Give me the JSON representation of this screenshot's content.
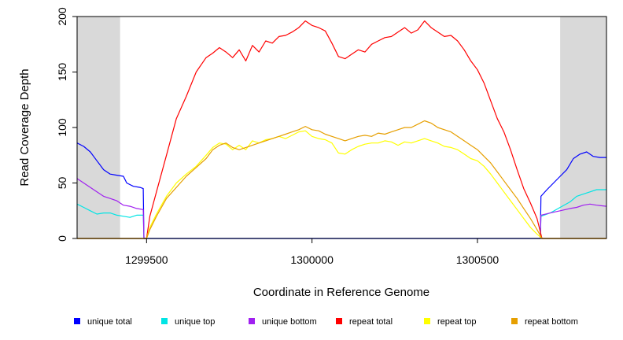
{
  "chart_data": {
    "type": "line",
    "title": "",
    "xlabel": "Coordinate in Reference Genome",
    "ylabel": "Read Coverage Depth",
    "xlim": [
      1299290,
      1300890
    ],
    "ylim": [
      0,
      200
    ],
    "x_ticks": [
      1299500,
      1300000,
      1300500
    ],
    "x_tick_labels": [
      "1299500",
      "1300000",
      "1300500"
    ],
    "y_ticks": [
      0,
      50,
      100,
      150,
      200
    ],
    "y_tick_labels": [
      "0",
      "50",
      "100",
      "150",
      "200"
    ],
    "shaded_regions": [
      [
        1299290,
        1299420
      ],
      [
        1300750,
        1300890
      ]
    ],
    "legend_position": "bottom",
    "series": [
      {
        "name": "unique total",
        "color": "#0000ff",
        "points": [
          [
            1299290,
            86
          ],
          [
            1299310,
            83
          ],
          [
            1299330,
            78
          ],
          [
            1299350,
            70
          ],
          [
            1299370,
            62
          ],
          [
            1299390,
            58
          ],
          [
            1299410,
            57
          ],
          [
            1299430,
            56
          ],
          [
            1299440,
            50
          ],
          [
            1299460,
            47
          ],
          [
            1299480,
            46
          ],
          [
            1299490,
            45
          ],
          [
            1299492,
            0
          ],
          [
            1300690,
            0
          ],
          [
            1300692,
            38
          ],
          [
            1300710,
            44
          ],
          [
            1300730,
            50
          ],
          [
            1300750,
            56
          ],
          [
            1300770,
            62
          ],
          [
            1300790,
            72
          ],
          [
            1300810,
            76
          ],
          [
            1300830,
            78
          ],
          [
            1300850,
            74
          ],
          [
            1300870,
            73
          ],
          [
            1300890,
            73
          ]
        ]
      },
      {
        "name": "unique top",
        "color": "#00e5e5",
        "points": [
          [
            1299290,
            31
          ],
          [
            1299310,
            28
          ],
          [
            1299330,
            25
          ],
          [
            1299350,
            22
          ],
          [
            1299370,
            23
          ],
          [
            1299390,
            23
          ],
          [
            1299410,
            21
          ],
          [
            1299430,
            20
          ],
          [
            1299450,
            19
          ],
          [
            1299470,
            21
          ],
          [
            1299490,
            21
          ],
          [
            1299492,
            0
          ],
          [
            1300690,
            0
          ],
          [
            1300692,
            20
          ],
          [
            1300720,
            23
          ],
          [
            1300750,
            28
          ],
          [
            1300780,
            33
          ],
          [
            1300800,
            38
          ],
          [
            1300820,
            40
          ],
          [
            1300840,
            42
          ],
          [
            1300860,
            44
          ],
          [
            1300890,
            44
          ]
        ]
      },
      {
        "name": "unique bottom",
        "color": "#a020f0",
        "points": [
          [
            1299290,
            54
          ],
          [
            1299310,
            50
          ],
          [
            1299330,
            46
          ],
          [
            1299350,
            42
          ],
          [
            1299370,
            38
          ],
          [
            1299390,
            36
          ],
          [
            1299410,
            34
          ],
          [
            1299430,
            30
          ],
          [
            1299450,
            29
          ],
          [
            1299470,
            27
          ],
          [
            1299490,
            26
          ],
          [
            1299492,
            0
          ],
          [
            1300690,
            0
          ],
          [
            1300692,
            21
          ],
          [
            1300720,
            23
          ],
          [
            1300750,
            25
          ],
          [
            1300780,
            27
          ],
          [
            1300800,
            28
          ],
          [
            1300820,
            30
          ],
          [
            1300840,
            31
          ],
          [
            1300860,
            30
          ],
          [
            1300890,
            29
          ]
        ]
      },
      {
        "name": "repeat total",
        "color": "#ff0000",
        "points": [
          [
            1299290,
            0
          ],
          [
            1299500,
            0
          ],
          [
            1299510,
            20
          ],
          [
            1299530,
            42
          ],
          [
            1299560,
            75
          ],
          [
            1299590,
            108
          ],
          [
            1299620,
            128
          ],
          [
            1299650,
            150
          ],
          [
            1299680,
            163
          ],
          [
            1299700,
            167
          ],
          [
            1299720,
            172
          ],
          [
            1299740,
            168
          ],
          [
            1299760,
            163
          ],
          [
            1299780,
            170
          ],
          [
            1299800,
            160
          ],
          [
            1299820,
            174
          ],
          [
            1299840,
            168
          ],
          [
            1299860,
            178
          ],
          [
            1299880,
            176
          ],
          [
            1299900,
            182
          ],
          [
            1299920,
            183
          ],
          [
            1299940,
            186
          ],
          [
            1299960,
            190
          ],
          [
            1299980,
            196
          ],
          [
            1300000,
            192
          ],
          [
            1300020,
            190
          ],
          [
            1300040,
            187
          ],
          [
            1300060,
            176
          ],
          [
            1300080,
            164
          ],
          [
            1300100,
            162
          ],
          [
            1300120,
            166
          ],
          [
            1300140,
            170
          ],
          [
            1300160,
            168
          ],
          [
            1300180,
            175
          ],
          [
            1300200,
            178
          ],
          [
            1300220,
            181
          ],
          [
            1300240,
            182
          ],
          [
            1300260,
            186
          ],
          [
            1300280,
            190
          ],
          [
            1300300,
            185
          ],
          [
            1300320,
            188
          ],
          [
            1300340,
            196
          ],
          [
            1300360,
            190
          ],
          [
            1300380,
            186
          ],
          [
            1300400,
            182
          ],
          [
            1300420,
            183
          ],
          [
            1300440,
            178
          ],
          [
            1300460,
            170
          ],
          [
            1300480,
            160
          ],
          [
            1300500,
            152
          ],
          [
            1300520,
            140
          ],
          [
            1300540,
            124
          ],
          [
            1300560,
            108
          ],
          [
            1300580,
            96
          ],
          [
            1300600,
            80
          ],
          [
            1300620,
            62
          ],
          [
            1300640,
            45
          ],
          [
            1300660,
            32
          ],
          [
            1300680,
            18
          ],
          [
            1300695,
            0
          ],
          [
            1300890,
            0
          ]
        ]
      },
      {
        "name": "repeat top",
        "color": "#ffff00",
        "points": [
          [
            1299290,
            0
          ],
          [
            1299500,
            0
          ],
          [
            1299510,
            10
          ],
          [
            1299530,
            22
          ],
          [
            1299560,
            38
          ],
          [
            1299590,
            50
          ],
          [
            1299620,
            58
          ],
          [
            1299650,
            65
          ],
          [
            1299680,
            75
          ],
          [
            1299700,
            82
          ],
          [
            1299720,
            86
          ],
          [
            1299740,
            85
          ],
          [
            1299760,
            80
          ],
          [
            1299780,
            84
          ],
          [
            1299800,
            80
          ],
          [
            1299820,
            88
          ],
          [
            1299840,
            86
          ],
          [
            1299860,
            89
          ],
          [
            1299880,
            90
          ],
          [
            1299900,
            92
          ],
          [
            1299920,
            90
          ],
          [
            1299940,
            93
          ],
          [
            1299960,
            96
          ],
          [
            1299980,
            97
          ],
          [
            1300000,
            92
          ],
          [
            1300020,
            90
          ],
          [
            1300040,
            89
          ],
          [
            1300060,
            86
          ],
          [
            1300080,
            77
          ],
          [
            1300100,
            76
          ],
          [
            1300120,
            80
          ],
          [
            1300140,
            83
          ],
          [
            1300160,
            85
          ],
          [
            1300180,
            86
          ],
          [
            1300200,
            86
          ],
          [
            1300220,
            88
          ],
          [
            1300240,
            87
          ],
          [
            1300260,
            84
          ],
          [
            1300280,
            87
          ],
          [
            1300300,
            86
          ],
          [
            1300320,
            88
          ],
          [
            1300340,
            90
          ],
          [
            1300360,
            88
          ],
          [
            1300380,
            86
          ],
          [
            1300400,
            83
          ],
          [
            1300420,
            82
          ],
          [
            1300440,
            80
          ],
          [
            1300460,
            76
          ],
          [
            1300480,
            72
          ],
          [
            1300500,
            70
          ],
          [
            1300520,
            65
          ],
          [
            1300540,
            58
          ],
          [
            1300560,
            50
          ],
          [
            1300580,
            42
          ],
          [
            1300600,
            34
          ],
          [
            1300620,
            26
          ],
          [
            1300640,
            18
          ],
          [
            1300660,
            10
          ],
          [
            1300680,
            4
          ],
          [
            1300695,
            0
          ],
          [
            1300890,
            0
          ]
        ]
      },
      {
        "name": "repeat bottom",
        "color": "#e69f00",
        "points": [
          [
            1299290,
            0
          ],
          [
            1299500,
            0
          ],
          [
            1299510,
            8
          ],
          [
            1299530,
            20
          ],
          [
            1299560,
            36
          ],
          [
            1299590,
            46
          ],
          [
            1299620,
            56
          ],
          [
            1299650,
            64
          ],
          [
            1299680,
            72
          ],
          [
            1299700,
            80
          ],
          [
            1299720,
            84
          ],
          [
            1299740,
            86
          ],
          [
            1299760,
            82
          ],
          [
            1299780,
            80
          ],
          [
            1299800,
            82
          ],
          [
            1299820,
            84
          ],
          [
            1299840,
            86
          ],
          [
            1299860,
            88
          ],
          [
            1299880,
            90
          ],
          [
            1299900,
            92
          ],
          [
            1299920,
            94
          ],
          [
            1299940,
            96
          ],
          [
            1299960,
            98
          ],
          [
            1299980,
            101
          ],
          [
            1300000,
            98
          ],
          [
            1300020,
            97
          ],
          [
            1300040,
            94
          ],
          [
            1300060,
            92
          ],
          [
            1300080,
            90
          ],
          [
            1300100,
            88
          ],
          [
            1300120,
            90
          ],
          [
            1300140,
            92
          ],
          [
            1300160,
            93
          ],
          [
            1300180,
            92
          ],
          [
            1300200,
            95
          ],
          [
            1300220,
            94
          ],
          [
            1300240,
            96
          ],
          [
            1300260,
            98
          ],
          [
            1300280,
            100
          ],
          [
            1300300,
            100
          ],
          [
            1300320,
            103
          ],
          [
            1300340,
            106
          ],
          [
            1300360,
            104
          ],
          [
            1300380,
            100
          ],
          [
            1300400,
            98
          ],
          [
            1300420,
            96
          ],
          [
            1300440,
            92
          ],
          [
            1300460,
            88
          ],
          [
            1300480,
            84
          ],
          [
            1300500,
            80
          ],
          [
            1300520,
            74
          ],
          [
            1300540,
            68
          ],
          [
            1300560,
            60
          ],
          [
            1300580,
            52
          ],
          [
            1300600,
            44
          ],
          [
            1300620,
            36
          ],
          [
            1300640,
            27
          ],
          [
            1300660,
            18
          ],
          [
            1300680,
            8
          ],
          [
            1300695,
            0
          ],
          [
            1300890,
            0
          ]
        ]
      }
    ]
  }
}
